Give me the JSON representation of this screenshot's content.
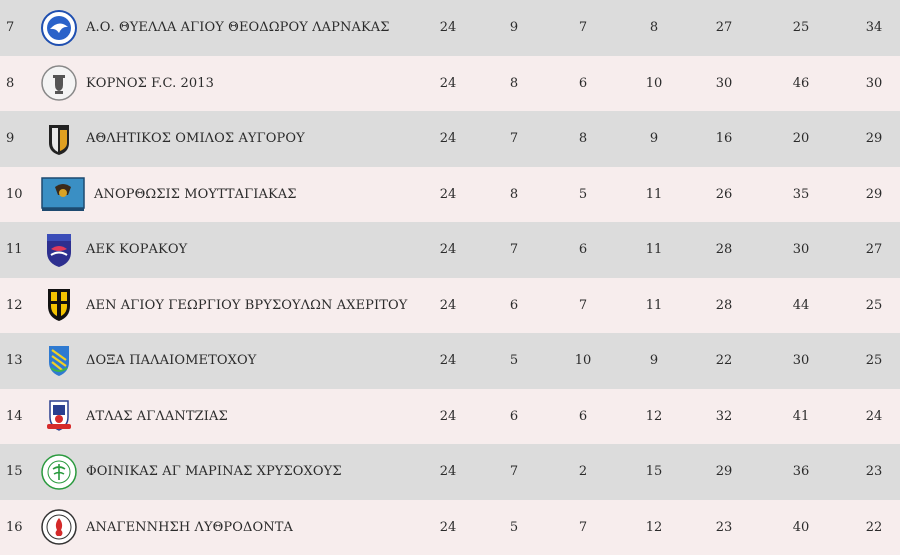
{
  "rows": [
    {
      "position": "7",
      "team": "Α.Ο. ΘΥΕΛΛΑ ΑΓΙΟΥ ΘΕΟΔΩΡΟΥ ΛΑΡΝΑΚΑΣ",
      "played": "24",
      "won": "9",
      "drawn": "7",
      "lost": "8",
      "gf": "27",
      "ga": "25",
      "pts": "34",
      "logo": "thyella-crest-icon"
    },
    {
      "position": "8",
      "team": "ΚΟΡΝΟΣ F.C. 2013",
      "played": "24",
      "won": "8",
      "drawn": "6",
      "lost": "10",
      "gf": "30",
      "ga": "46",
      "pts": "30",
      "logo": "kornos-crest-icon"
    },
    {
      "position": "9",
      "team": "ΑΘΛΗΤΙΚΟΣ ΟΜΙΛΟΣ ΑΥΓΟΡΟΥ",
      "played": "24",
      "won": "7",
      "drawn": "8",
      "lost": "9",
      "gf": "16",
      "ga": "20",
      "pts": "29",
      "logo": "avgorou-crest-icon"
    },
    {
      "position": "10",
      "team": "ΑΝΟΡΘΩΣΙΣ ΜΟΥΤΤΑΓΙΑΚΑΣ",
      "played": "24",
      "won": "8",
      "drawn": "5",
      "lost": "11",
      "gf": "26",
      "ga": "35",
      "pts": "29",
      "logo": "anorthosis-crest-icon"
    },
    {
      "position": "11",
      "team": "ΑΕΚ ΚΟΡΑΚΟΥ",
      "played": "24",
      "won": "7",
      "drawn": "6",
      "lost": "11",
      "gf": "28",
      "ga": "30",
      "pts": "27",
      "logo": "aek-korakou-crest-icon"
    },
    {
      "position": "12",
      "team": "ΑΕΝ ΑΓΙΟΥ ΓΕΩΡΓΙΟΥ ΒΡΥΣΟΥΛΩΝ ΑΧΕΡΙΤΟΥ",
      "played": "24",
      "won": "6",
      "drawn": "7",
      "lost": "11",
      "gf": "28",
      "ga": "44",
      "pts": "25",
      "logo": "aen-crest-icon"
    },
    {
      "position": "13",
      "team": "ΔΟΞΑ ΠΑΛΑΙΟΜΕΤΟΧΟΥ",
      "played": "24",
      "won": "5",
      "drawn": "10",
      "lost": "9",
      "gf": "22",
      "ga": "30",
      "pts": "25",
      "logo": "doxa-crest-icon"
    },
    {
      "position": "14",
      "team": "ΑΤΛΑΣ ΑΓΛΑΝΤΖΙΑΣ",
      "played": "24",
      "won": "6",
      "drawn": "6",
      "lost": "12",
      "gf": "32",
      "ga": "41",
      "pts": "24",
      "logo": "atlas-crest-icon"
    },
    {
      "position": "15",
      "team": "ΦΟΙΝΙΚΑΣ ΑΓ ΜΑΡΙΝΑΣ ΧΡΥΣΟΧΟΥΣ",
      "played": "24",
      "won": "7",
      "drawn": "2",
      "lost": "15",
      "gf": "29",
      "ga": "36",
      "pts": "23",
      "logo": "foinikas-crest-icon"
    },
    {
      "position": "16",
      "team": "ΑΝΑΓΕΝΝΗΣΗ ΛΥΘΡΟΔΟΝΤΑ",
      "played": "24",
      "won": "5",
      "drawn": "7",
      "lost": "12",
      "gf": "23",
      "ga": "40",
      "pts": "22",
      "logo": "anagennisi-crest-icon"
    }
  ],
  "colors": {
    "row_odd": "#dcdcdc",
    "row_even": "#f7eded",
    "text": "#2b2b2b"
  }
}
